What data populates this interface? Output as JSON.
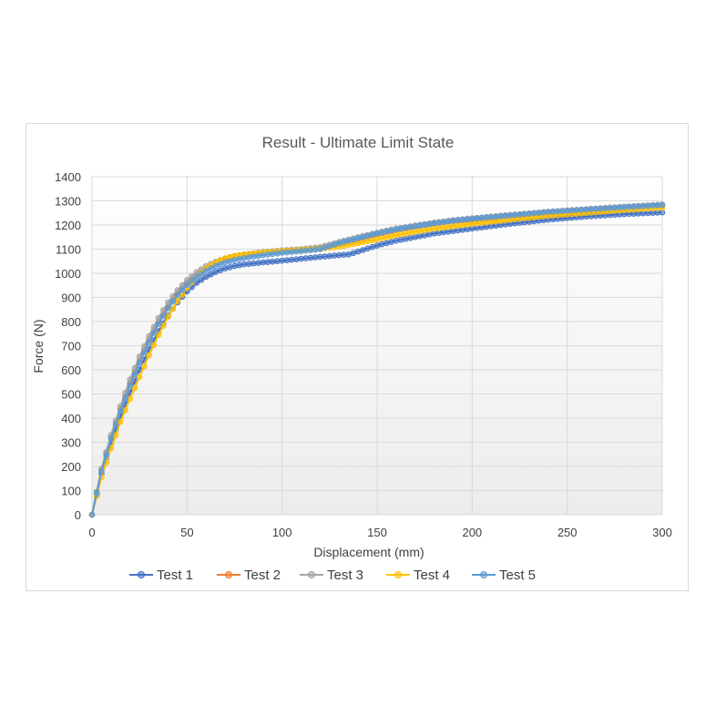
{
  "chart_data": {
    "type": "scatter",
    "title": "Result - Ultimate Limit State",
    "xlabel": "Displacement (mm)",
    "ylabel": "Force (N)",
    "xlim": [
      0,
      300
    ],
    "ylim": [
      0,
      1400
    ],
    "x_ticks": [
      0,
      50,
      100,
      150,
      200,
      250,
      300
    ],
    "y_ticks": [
      0,
      100,
      200,
      300,
      400,
      500,
      600,
      700,
      800,
      900,
      1000,
      1100,
      1200,
      1300,
      1400
    ],
    "grid": true,
    "legend_position": "bottom",
    "series": [
      {
        "name": "Test 1",
        "color": "#4472c4",
        "x": [
          0,
          5,
          10,
          15,
          20,
          25,
          30,
          35,
          40,
          45,
          50,
          55,
          60,
          65,
          70,
          75,
          80,
          90,
          100,
          110,
          120,
          130,
          135,
          140,
          150,
          160,
          170,
          180,
          190,
          200,
          220,
          240,
          260,
          280,
          300
        ],
        "y": [
          0,
          170,
          295,
          405,
          505,
          600,
          685,
          760,
          825,
          880,
          925,
          960,
          985,
          1005,
          1020,
          1030,
          1037,
          1045,
          1052,
          1060,
          1068,
          1075,
          1078,
          1090,
          1115,
          1135,
          1150,
          1165,
          1175,
          1185,
          1205,
          1222,
          1235,
          1245,
          1252
        ]
      },
      {
        "name": "Test 2",
        "color": "#ed7d31",
        "x": [
          0,
          5,
          10,
          15,
          20,
          25,
          30,
          35,
          40,
          45,
          50,
          55,
          60,
          65,
          70,
          75,
          80,
          90,
          100,
          110,
          120,
          130,
          140,
          150,
          160,
          170,
          180,
          190,
          200,
          220,
          240,
          260,
          280,
          300
        ],
        "y": [
          0,
          185,
          320,
          440,
          545,
          640,
          725,
          800,
          865,
          920,
          962,
          995,
          1022,
          1042,
          1058,
          1068,
          1075,
          1085,
          1092,
          1098,
          1105,
          1120,
          1140,
          1160,
          1178,
          1192,
          1205,
          1215,
          1222,
          1238,
          1252,
          1262,
          1272,
          1280
        ]
      },
      {
        "name": "Test 3",
        "color": "#a5a5a5",
        "x": [
          0,
          5,
          10,
          15,
          20,
          25,
          30,
          35,
          40,
          45,
          50,
          55,
          60,
          65,
          70,
          75,
          80,
          90,
          100,
          110,
          120,
          130,
          140,
          150,
          160,
          170,
          180,
          190,
          200,
          220,
          240,
          260,
          280,
          300
        ],
        "y": [
          0,
          190,
          330,
          450,
          560,
          655,
          740,
          815,
          880,
          930,
          972,
          1005,
          1030,
          1048,
          1062,
          1072,
          1078,
          1088,
          1095,
          1100,
          1108,
          1130,
          1150,
          1168,
          1185,
          1198,
          1210,
          1220,
          1228,
          1242,
          1255,
          1266,
          1276,
          1285
        ]
      },
      {
        "name": "Test 4",
        "color": "#ffc000",
        "x": [
          0,
          5,
          10,
          15,
          20,
          25,
          30,
          35,
          40,
          45,
          50,
          55,
          60,
          65,
          70,
          75,
          80,
          90,
          100,
          110,
          120,
          130,
          140,
          150,
          160,
          170,
          180,
          190,
          200,
          220,
          240,
          260,
          280,
          300
        ],
        "y": [
          0,
          155,
          275,
          385,
          480,
          570,
          660,
          745,
          820,
          885,
          940,
          985,
          1020,
          1045,
          1062,
          1072,
          1078,
          1086,
          1092,
          1097,
          1102,
          1110,
          1125,
          1140,
          1158,
          1172,
          1185,
          1195,
          1205,
          1222,
          1238,
          1250,
          1262,
          1272
        ]
      },
      {
        "name": "Test 5",
        "color": "#5b9bd5",
        "x": [
          0,
          5,
          10,
          15,
          20,
          25,
          30,
          35,
          40,
          45,
          50,
          55,
          60,
          65,
          70,
          75,
          80,
          90,
          100,
          110,
          120,
          130,
          140,
          150,
          160,
          170,
          180,
          190,
          200,
          220,
          240,
          260,
          280,
          300
        ],
        "y": [
          0,
          180,
          315,
          430,
          535,
          630,
          715,
          790,
          855,
          910,
          952,
          985,
          1010,
          1030,
          1045,
          1055,
          1063,
          1075,
          1085,
          1092,
          1100,
          1125,
          1145,
          1165,
          1182,
          1195,
          1207,
          1218,
          1226,
          1240,
          1254,
          1264,
          1274,
          1283
        ]
      }
    ]
  }
}
